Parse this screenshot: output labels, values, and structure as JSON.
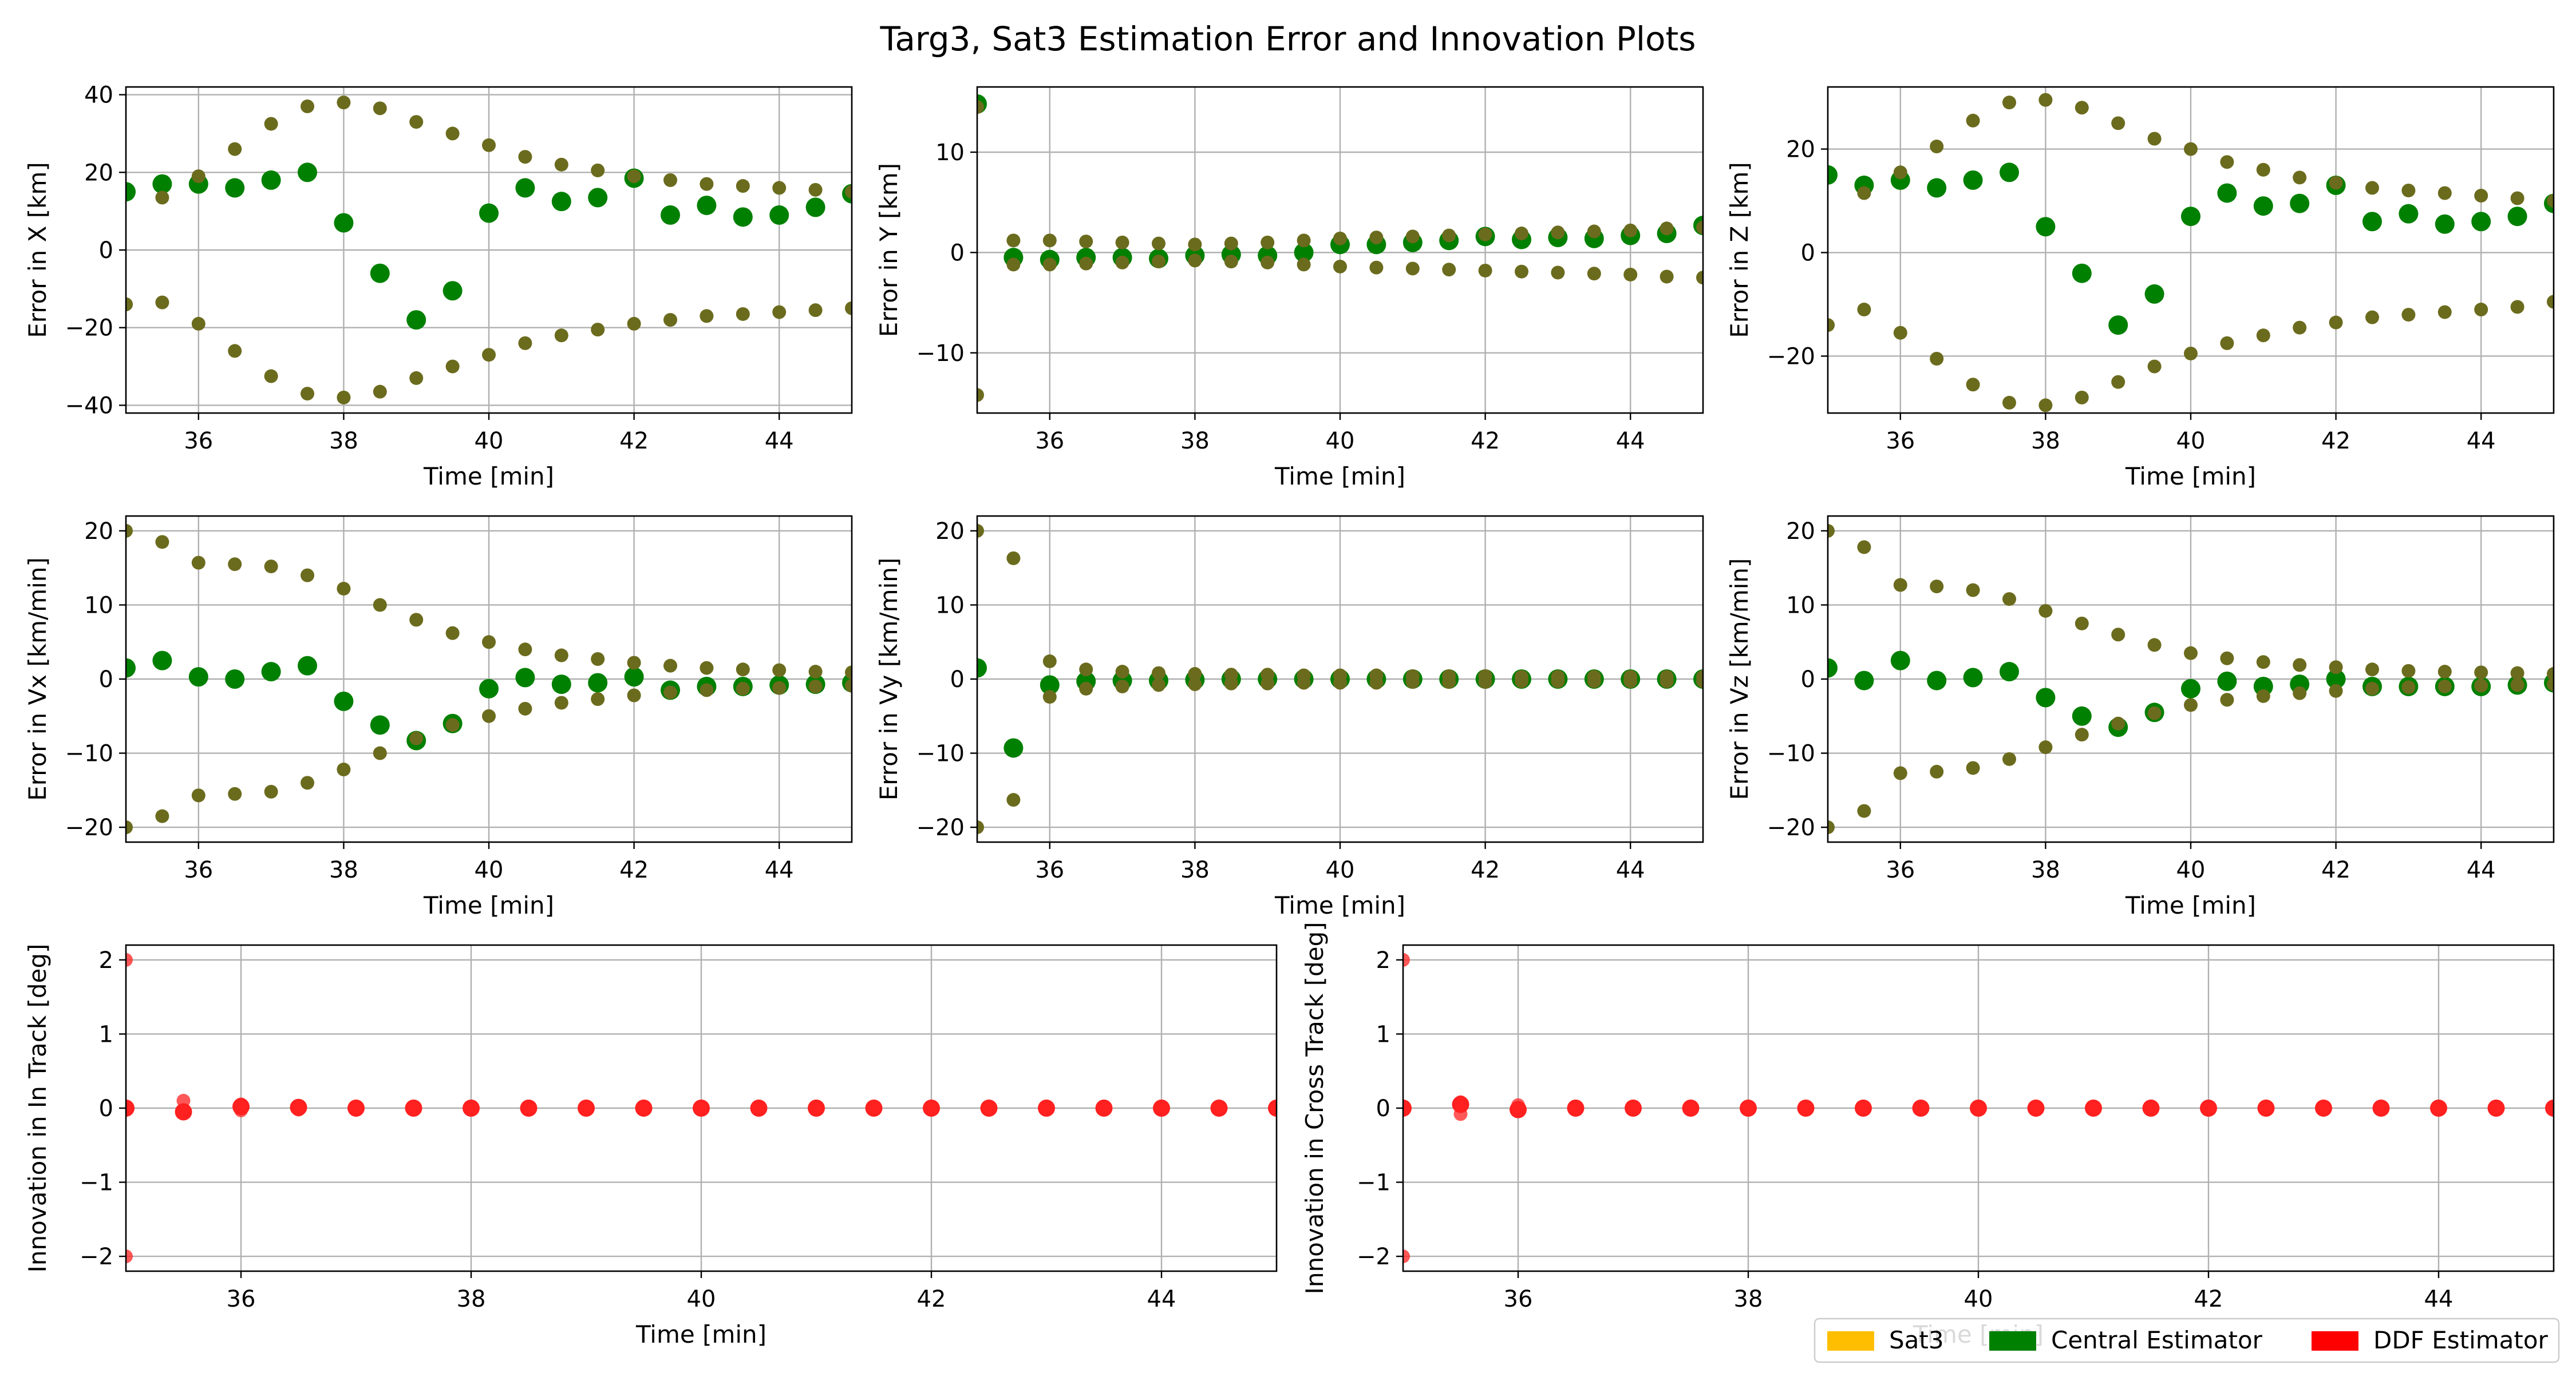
{
  "title": "Targ3, Sat3 Estimation Error and Innovation Plots",
  "legend": [
    {
      "label": "Sat3",
      "color": "#ffbf00"
    },
    {
      "label": "Central Estimator",
      "color": "#008000"
    },
    {
      "label": "DDF Estimator",
      "color": "#ff0000"
    }
  ],
  "colors": {
    "central": "#008000",
    "bound": "#6b6b1e",
    "ddf": "#ff2020",
    "grid": "#b0b0b0"
  },
  "chart_data": [
    {
      "type": "scatter",
      "ylabel": "Error in X [km]",
      "xlabel": "Time [min]",
      "xlim": [
        35,
        45
      ],
      "ylim": [
        -42,
        42
      ],
      "xticks": [
        "36",
        "38",
        "40",
        "42",
        "44"
      ],
      "yticks": [
        "−40",
        "−20",
        "0",
        "20",
        "40"
      ],
      "x": [
        35,
        35.5,
        36,
        36.5,
        37,
        37.5,
        38,
        38.5,
        39,
        39.5,
        40,
        40.5,
        41,
        41.5,
        42,
        42.5,
        43,
        43.5,
        44,
        44.5,
        45
      ],
      "series": [
        {
          "role": "error",
          "values": [
            15,
            17,
            17,
            16,
            18,
            20,
            7,
            -6,
            -18,
            -10.5,
            9.5,
            16,
            12.5,
            13.5,
            18.5,
            9,
            11.5,
            8.5,
            9,
            11,
            14.5
          ]
        },
        {
          "role": "upper",
          "values": [
            -14,
            13.5,
            19,
            26,
            32.5,
            37,
            38,
            36.5,
            33,
            30,
            27,
            24,
            22,
            20.5,
            19,
            18,
            17,
            16.5,
            16,
            15.5,
            15
          ]
        },
        {
          "role": "lower",
          "values": [
            -14,
            -13.5,
            -19,
            -26,
            -32.5,
            -37,
            -38,
            -36.5,
            -33,
            -30,
            -27,
            -24,
            -22,
            -20.5,
            -19,
            -18,
            -17,
            -16.5,
            -16,
            -15.5,
            -15
          ]
        }
      ]
    },
    {
      "type": "scatter",
      "ylabel": "Error in Y [km]",
      "xlabel": "Time [min]",
      "xlim": [
        35,
        45
      ],
      "ylim": [
        -16,
        16.5
      ],
      "xticks": [
        "36",
        "38",
        "40",
        "42",
        "44"
      ],
      "yticks": [
        "−10",
        "0",
        "10"
      ],
      "x": [
        35,
        35.5,
        36,
        36.5,
        37,
        37.5,
        38,
        38.5,
        39,
        39.5,
        40,
        40.5,
        41,
        41.5,
        42,
        42.5,
        43,
        43.5,
        44,
        44.5,
        45
      ],
      "series": [
        {
          "role": "error",
          "values": [
            14.8,
            -0.5,
            -0.7,
            -0.5,
            -0.5,
            -0.6,
            -0.3,
            -0.2,
            -0.3,
            0,
            0.8,
            0.8,
            1,
            1.2,
            1.6,
            1.3,
            1.5,
            1.4,
            1.7,
            1.9,
            2.7
          ]
        },
        {
          "role": "upper",
          "values": [
            14.5,
            1.2,
            1.2,
            1.1,
            1,
            0.9,
            0.8,
            0.9,
            1,
            1.2,
            1.4,
            1.5,
            1.6,
            1.7,
            1.8,
            1.9,
            2,
            2.1,
            2.2,
            2.4,
            2.5
          ]
        },
        {
          "role": "lower",
          "values": [
            -14.2,
            -1.2,
            -1.2,
            -1.1,
            -1,
            -0.9,
            -0.8,
            -0.9,
            -1,
            -1.2,
            -1.4,
            -1.5,
            -1.6,
            -1.7,
            -1.8,
            -1.9,
            -2,
            -2.1,
            -2.2,
            -2.4,
            -2.5
          ]
        }
      ]
    },
    {
      "type": "scatter",
      "ylabel": "Error in Z [km]",
      "xlabel": "Time [min]",
      "xlim": [
        35,
        45
      ],
      "ylim": [
        -31,
        32
      ],
      "xticks": [
        "36",
        "38",
        "40",
        "42",
        "44"
      ],
      "yticks": [
        "−20",
        "0",
        "20"
      ],
      "x": [
        35,
        35.5,
        36,
        36.5,
        37,
        37.5,
        38,
        38.5,
        39,
        39.5,
        40,
        40.5,
        41,
        41.5,
        42,
        42.5,
        43,
        43.5,
        44,
        44.5,
        45
      ],
      "series": [
        {
          "role": "error",
          "values": [
            15,
            13,
            14,
            12.5,
            14,
            15.5,
            5,
            -4,
            -14,
            -8,
            7,
            11.5,
            9,
            9.5,
            13,
            6,
            7.5,
            5.5,
            6,
            7,
            9.5
          ]
        },
        {
          "role": "upper",
          "values": [
            -14,
            11.5,
            15.5,
            20.5,
            25.5,
            29,
            29.5,
            28,
            25,
            22,
            20,
            17.5,
            16,
            14.5,
            13.5,
            12.5,
            12,
            11.5,
            11,
            10.5,
            10
          ]
        },
        {
          "role": "lower",
          "values": [
            -14,
            -11,
            -15.5,
            -20.5,
            -25.5,
            -29,
            -29.5,
            -28,
            -25,
            -22,
            -19.5,
            -17.5,
            -16,
            -14.5,
            -13.5,
            -12.5,
            -12,
            -11.5,
            -11,
            -10.5,
            -9.5
          ]
        }
      ]
    },
    {
      "type": "scatter",
      "ylabel": "Error in Vx [km/min]",
      "xlabel": "Time [min]",
      "xlim": [
        35,
        45
      ],
      "ylim": [
        -22,
        22
      ],
      "xticks": [
        "36",
        "38",
        "40",
        "42",
        "44"
      ],
      "yticks": [
        "−20",
        "−10",
        "0",
        "10",
        "20"
      ],
      "x": [
        35,
        35.5,
        36,
        36.5,
        37,
        37.5,
        38,
        38.5,
        39,
        39.5,
        40,
        40.5,
        41,
        41.5,
        42,
        42.5,
        43,
        43.5,
        44,
        44.5,
        45
      ],
      "series": [
        {
          "role": "error",
          "values": [
            1.5,
            2.5,
            0.3,
            0,
            1,
            1.8,
            -3,
            -6.2,
            -8.3,
            -6,
            -1.3,
            0.2,
            -0.7,
            -0.5,
            0.3,
            -1.5,
            -1,
            -1,
            -0.8,
            -0.7,
            -0.5
          ]
        },
        {
          "role": "upper",
          "values": [
            20,
            18.5,
            15.7,
            15.5,
            15.2,
            14,
            12.2,
            10,
            8,
            6.2,
            5,
            4,
            3.2,
            2.7,
            2.2,
            1.8,
            1.5,
            1.3,
            1.2,
            1,
            0.9
          ]
        },
        {
          "role": "lower",
          "values": [
            -20,
            -18.5,
            -15.7,
            -15.5,
            -15.2,
            -14,
            -12.2,
            -10,
            -8,
            -6.2,
            -5,
            -4,
            -3.2,
            -2.7,
            -2.2,
            -1.8,
            -1.5,
            -1.3,
            -1.2,
            -1,
            -0.9
          ]
        }
      ]
    },
    {
      "type": "scatter",
      "ylabel": "Error in Vy [km/min]",
      "xlabel": "Time [min]",
      "xlim": [
        35,
        45
      ],
      "ylim": [
        -22,
        22
      ],
      "xticks": [
        "36",
        "38",
        "40",
        "42",
        "44"
      ],
      "yticks": [
        "−20",
        "−10",
        "0",
        "10",
        "20"
      ],
      "x": [
        35,
        35.5,
        36,
        36.5,
        37,
        37.5,
        38,
        38.5,
        39,
        39.5,
        40,
        40.5,
        41,
        41.5,
        42,
        42.5,
        43,
        43.5,
        44,
        44.5,
        45
      ],
      "series": [
        {
          "role": "error",
          "values": [
            1.5,
            -9.3,
            -0.8,
            -0.3,
            -0.2,
            -0.2,
            -0.1,
            0,
            0,
            0,
            0,
            0,
            0,
            0,
            0,
            0,
            0,
            0,
            0,
            0,
            0
          ]
        },
        {
          "role": "upper",
          "values": [
            20,
            16.3,
            2.4,
            1.3,
            1,
            0.8,
            0.7,
            0.6,
            0.6,
            0.5,
            0.5,
            0.5,
            0.4,
            0.4,
            0.4,
            0.3,
            0.3,
            0.3,
            0.3,
            0.3,
            0.3
          ]
        },
        {
          "role": "lower",
          "values": [
            -20,
            -16.3,
            -2.4,
            -1.3,
            -1,
            -0.8,
            -0.7,
            -0.6,
            -0.6,
            -0.5,
            -0.5,
            -0.5,
            -0.4,
            -0.4,
            -0.4,
            -0.3,
            -0.3,
            -0.3,
            -0.3,
            -0.3,
            -0.3
          ]
        }
      ]
    },
    {
      "type": "scatter",
      "ylabel": "Error in Vz [km/min]",
      "xlabel": "Time [min]",
      "xlim": [
        35,
        45
      ],
      "ylim": [
        -22,
        22
      ],
      "xticks": [
        "36",
        "38",
        "40",
        "42",
        "44"
      ],
      "yticks": [
        "−20",
        "−10",
        "0",
        "10",
        "20"
      ],
      "x": [
        35,
        35.5,
        36,
        36.5,
        37,
        37.5,
        38,
        38.5,
        39,
        39.5,
        40,
        40.5,
        41,
        41.5,
        42,
        42.5,
        43,
        43.5,
        44,
        44.5,
        45
      ],
      "series": [
        {
          "role": "error",
          "values": [
            1.5,
            -0.2,
            2.5,
            -0.2,
            0.2,
            1,
            -2.5,
            -5,
            -6.5,
            -4.5,
            -1.3,
            -0.3,
            -1,
            -0.7,
            0,
            -1,
            -1,
            -1,
            -1,
            -0.8,
            -0.5
          ]
        },
        {
          "role": "upper",
          "values": [
            20,
            17.8,
            12.7,
            12.5,
            12,
            10.8,
            9.2,
            7.5,
            6,
            4.6,
            3.5,
            2.8,
            2.3,
            1.9,
            1.6,
            1.3,
            1.1,
            1,
            0.9,
            0.8,
            0.7
          ]
        },
        {
          "role": "lower",
          "values": [
            -20,
            -17.8,
            -12.7,
            -12.5,
            -12,
            -10.8,
            -9.2,
            -7.5,
            -6,
            -4.6,
            -3.5,
            -2.8,
            -2.3,
            -1.9,
            -1.6,
            -1.3,
            -1.1,
            -1,
            -0.9,
            -0.8,
            -0.7
          ]
        }
      ]
    },
    {
      "type": "scatter",
      "ylabel": "Innovation in In Track [deg]",
      "xlabel": "Time [min]",
      "xlim": [
        35,
        45
      ],
      "ylim": [
        -2.2,
        2.2
      ],
      "xticks": [
        "36",
        "38",
        "40",
        "42",
        "44"
      ],
      "yticks": [
        "−2",
        "−1",
        "0",
        "1",
        "2"
      ],
      "x": [
        35,
        35.5,
        36,
        36.5,
        37,
        37.5,
        38,
        38.5,
        39,
        39.5,
        40,
        40.5,
        41,
        41.5,
        42,
        42.5,
        43,
        43.5,
        44,
        44.5,
        45
      ],
      "series": [
        {
          "role": "innovation",
          "values": [
            0,
            -0.05,
            0.02,
            0.01,
            0,
            0,
            0,
            0,
            0,
            0,
            0,
            0,
            0,
            0,
            0,
            0,
            0,
            0,
            0,
            0,
            0
          ]
        },
        {
          "role": "upper",
          "values": [
            2,
            0.1,
            0.05,
            0.02,
            0.01,
            0.01,
            0.01,
            0,
            0,
            0,
            0,
            0,
            0,
            0,
            0,
            0,
            0,
            0,
            0,
            0,
            0
          ]
        },
        {
          "role": "lower",
          "values": [
            -2,
            -0.05,
            -0.03,
            -0.02,
            -0.01,
            -0.01,
            -0.01,
            0,
            0,
            0,
            0,
            0,
            0,
            0,
            0,
            0,
            0,
            0,
            0,
            0,
            0
          ]
        }
      ]
    },
    {
      "type": "scatter",
      "ylabel": "Innovation in Cross Track [deg]",
      "xlabel": "Time [min]",
      "xlim": [
        35,
        45
      ],
      "ylim": [
        -2.2,
        2.2
      ],
      "xticks": [
        "36",
        "38",
        "40",
        "42",
        "44"
      ],
      "yticks": [
        "−2",
        "−1",
        "0",
        "1",
        "2"
      ],
      "x": [
        35,
        35.5,
        36,
        36.5,
        37,
        37.5,
        38,
        38.5,
        39,
        39.5,
        40,
        40.5,
        41,
        41.5,
        42,
        42.5,
        43,
        43.5,
        44,
        44.5,
        45
      ],
      "series": [
        {
          "role": "innovation",
          "values": [
            0,
            0.05,
            -0.02,
            0,
            0,
            0,
            0,
            0,
            0,
            0,
            0,
            0,
            0,
            0,
            0,
            0,
            0,
            0,
            0,
            0,
            0
          ]
        },
        {
          "role": "upper",
          "values": [
            2,
            0.08,
            0.04,
            0.02,
            0.01,
            0.01,
            0.01,
            0,
            0,
            0,
            0,
            0,
            0,
            0,
            0,
            0,
            0,
            0,
            0,
            0,
            0
          ]
        },
        {
          "role": "lower",
          "values": [
            -2,
            -0.08,
            -0.04,
            -0.02,
            -0.01,
            -0.01,
            -0.01,
            0,
            0,
            0,
            0,
            0,
            0,
            0,
            0,
            0,
            0,
            0,
            0,
            0,
            0
          ]
        }
      ]
    }
  ]
}
